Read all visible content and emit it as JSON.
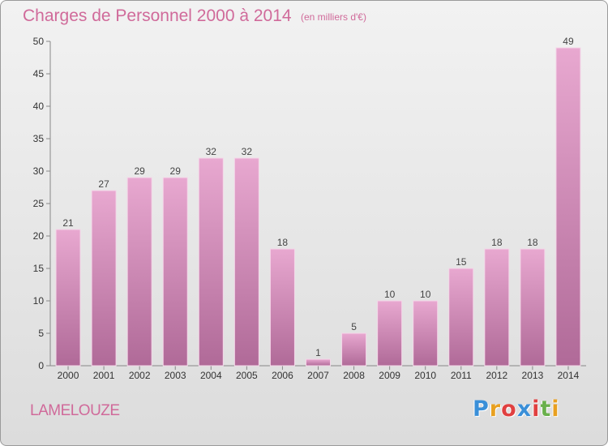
{
  "header": {
    "title": "Charges de Personnel 2000 à 2014",
    "subtitle": "(en milliers d'€)"
  },
  "footer": {
    "commune": "LAMELOUZE",
    "logo": "Proxiti",
    "logo_colors": [
      "#3a8fd8",
      "#e8a020",
      "#e04040",
      "#3a8fd8",
      "#e04040",
      "#6ab04c",
      "#e8a020"
    ]
  },
  "chart_data": {
    "type": "bar",
    "categories": [
      "2000",
      "2001",
      "2002",
      "2003",
      "2004",
      "2005",
      "2006",
      "2007",
      "2008",
      "2009",
      "2010",
      "2011",
      "2012",
      "2013",
      "2014"
    ],
    "values": [
      21,
      27,
      29,
      29,
      32,
      32,
      18,
      1,
      5,
      10,
      10,
      15,
      18,
      18,
      49
    ],
    "ylim": [
      0,
      50
    ],
    "yticks": [
      0,
      5,
      10,
      15,
      20,
      25,
      30,
      35,
      40,
      45,
      50
    ],
    "grid": false,
    "data_labels": true,
    "bar_color_top": "#e8a8d0",
    "bar_color_bottom": "#b06a98"
  }
}
